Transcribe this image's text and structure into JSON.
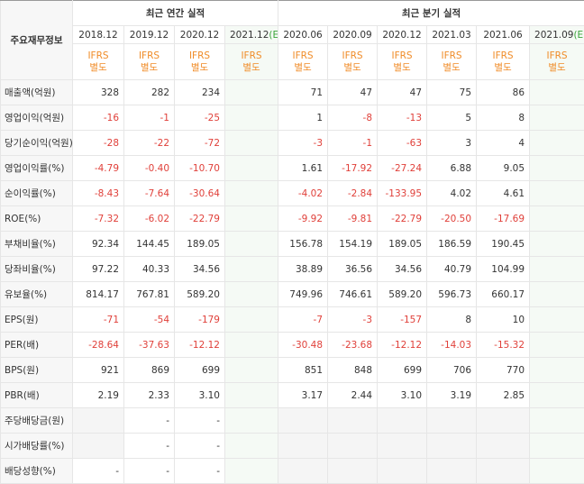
{
  "header": {
    "corner": "주요재무정보",
    "annual_title": "최근 연간 실적",
    "quarterly_title": "최근 분기 실적"
  },
  "columns": [
    {
      "date": "2018.12",
      "basis": "IFRS",
      "scope": "별도"
    },
    {
      "date": "2019.12",
      "basis": "IFRS",
      "scope": "별도"
    },
    {
      "date": "2020.12",
      "basis": "IFRS",
      "scope": "별도"
    },
    {
      "date": "2021.12",
      "estimate": "(E)",
      "basis": "IFRS",
      "scope": "별도"
    },
    {
      "date": "2020.06",
      "basis": "IFRS",
      "scope": "별도"
    },
    {
      "date": "2020.09",
      "basis": "IFRS",
      "scope": "별도"
    },
    {
      "date": "2020.12",
      "basis": "IFRS",
      "scope": "별도"
    },
    {
      "date": "2021.03",
      "basis": "IFRS",
      "scope": "별도"
    },
    {
      "date": "2021.06",
      "basis": "IFRS",
      "scope": "별도"
    },
    {
      "date": "2021.09",
      "estimate": "(E)",
      "basis": "IFRS",
      "scope": "별도"
    }
  ],
  "rows": [
    {
      "label": "매출액(억원)",
      "values": [
        "328",
        "282",
        "234",
        null,
        "71",
        "47",
        "47",
        "75",
        "86",
        null
      ]
    },
    {
      "label": "영업이익(억원)",
      "values": [
        "-16",
        "-1",
        "-25",
        null,
        "1",
        "-8",
        "-13",
        "5",
        "8",
        null
      ]
    },
    {
      "label": "당기순이익(억원)",
      "values": [
        "-28",
        "-22",
        "-72",
        null,
        "-3",
        "-1",
        "-63",
        "3",
        "4",
        null
      ]
    },
    {
      "label": "영업이익률(%)",
      "values": [
        "-4.79",
        "-0.40",
        "-10.70",
        null,
        "1.61",
        "-17.92",
        "-27.24",
        "6.88",
        "9.05",
        null
      ]
    },
    {
      "label": "순이익률(%)",
      "values": [
        "-8.43",
        "-7.64",
        "-30.64",
        null,
        "-4.02",
        "-2.84",
        "-133.95",
        "4.02",
        "4.61",
        null
      ]
    },
    {
      "label": "ROE(%)",
      "values": [
        "-7.32",
        "-6.02",
        "-22.79",
        null,
        "-9.92",
        "-9.81",
        "-22.79",
        "-20.50",
        "-17.69",
        null
      ]
    },
    {
      "label": "부채비율(%)",
      "values": [
        "92.34",
        "144.45",
        "189.05",
        null,
        "156.78",
        "154.19",
        "189.05",
        "186.59",
        "190.45",
        null
      ]
    },
    {
      "label": "당좌비율(%)",
      "values": [
        "97.22",
        "40.33",
        "34.56",
        null,
        "38.89",
        "36.56",
        "34.56",
        "40.79",
        "104.99",
        null
      ]
    },
    {
      "label": "유보율(%)",
      "values": [
        "814.17",
        "767.81",
        "589.20",
        null,
        "749.96",
        "746.61",
        "589.20",
        "596.73",
        "660.17",
        null
      ]
    },
    {
      "label": "EPS(원)",
      "values": [
        "-71",
        "-54",
        "-179",
        null,
        "-7",
        "-3",
        "-157",
        "8",
        "10",
        null
      ]
    },
    {
      "label": "PER(배)",
      "values": [
        "-28.64",
        "-37.63",
        "-12.12",
        null,
        "-30.48",
        "-23.68",
        "-12.12",
        "-14.03",
        "-15.32",
        null
      ]
    },
    {
      "label": "BPS(원)",
      "values": [
        "921",
        "869",
        "699",
        null,
        "851",
        "848",
        "699",
        "706",
        "770",
        null
      ]
    },
    {
      "label": "PBR(배)",
      "values": [
        "2.19",
        "2.33",
        "3.10",
        null,
        "3.17",
        "2.44",
        "3.10",
        "3.19",
        "2.85",
        null
      ]
    },
    {
      "label": "주당배당금(원)",
      "values": [
        null,
        "-",
        "-",
        null,
        null,
        null,
        null,
        null,
        null,
        null
      ]
    },
    {
      "label": "시가배당률(%)",
      "values": [
        null,
        "-",
        "-",
        null,
        null,
        null,
        null,
        null,
        null,
        null
      ]
    },
    {
      "label": "배당성향(%)",
      "values": [
        "-",
        "-",
        "-",
        null,
        null,
        null,
        null,
        null,
        null,
        null
      ]
    }
  ]
}
